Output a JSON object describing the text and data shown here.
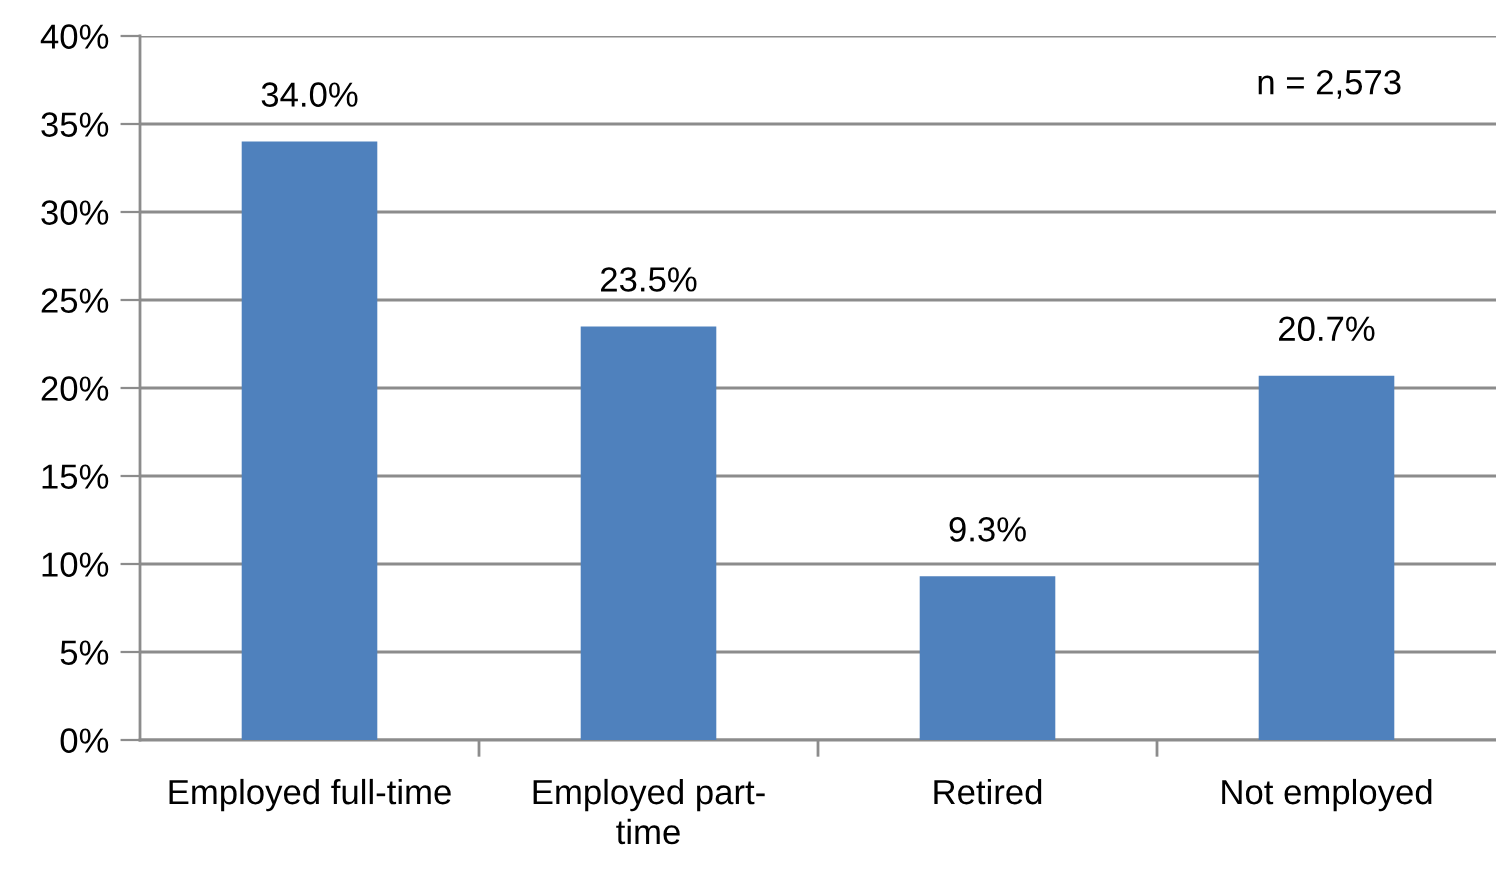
{
  "chart_data": {
    "type": "bar",
    "categories": [
      "Employed full-time",
      "Employed part-\ntime",
      "Retired",
      "Not employed"
    ],
    "values": [
      34.0,
      23.5,
      9.3,
      20.7
    ],
    "color": "#4f81bd",
    "value_labels": [
      "34.0%",
      "23.5%",
      "9.3%",
      "20.7%"
    ],
    "ylim": [
      0,
      40
    ],
    "yticks": [
      {
        "value": 0,
        "label": "0%"
      },
      {
        "value": 5,
        "label": "5%"
      },
      {
        "value": 10,
        "label": "10%"
      },
      {
        "value": 15,
        "label": "15%"
      },
      {
        "value": 20,
        "label": "20%"
      },
      {
        "value": 25,
        "label": "25%"
      },
      {
        "value": 30,
        "label": "30%"
      },
      {
        "value": 35,
        "label": "35%"
      },
      {
        "value": 40,
        "label": "40%"
      }
    ],
    "grid": "y",
    "annotations": [
      "n = 2,573"
    ]
  }
}
